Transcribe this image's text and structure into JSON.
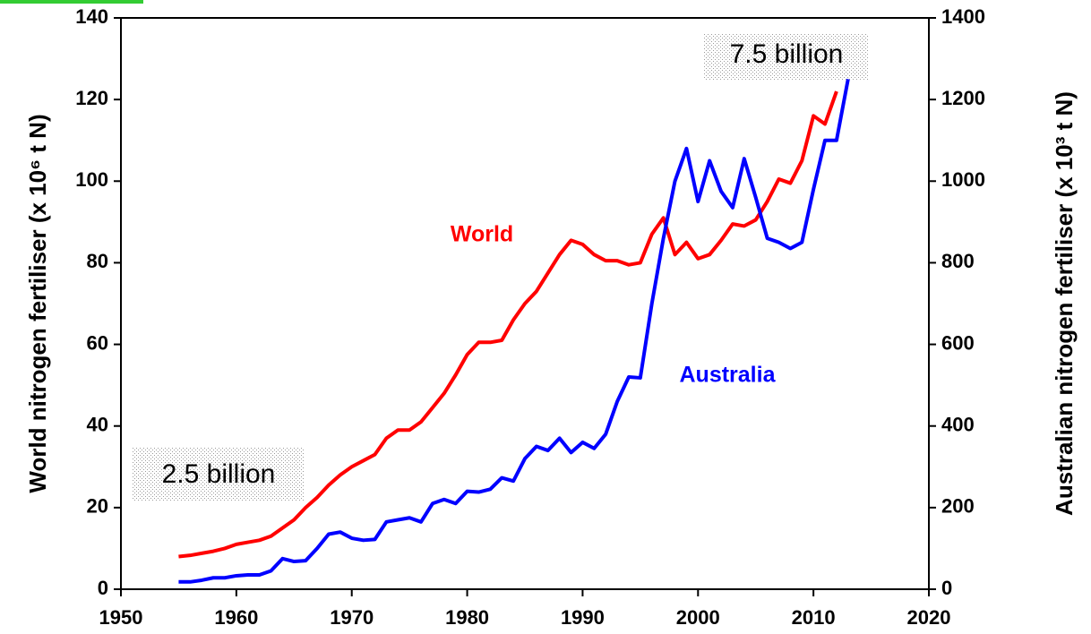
{
  "chart_data": {
    "type": "line",
    "y_label": "World nitrogen fertiliser (x 10⁶ t N)",
    "y2_label": "Australian nitrogen fertiliser (x 10³ t N)",
    "annotations": [
      "2.5 billion",
      "7.5 billion"
    ],
    "xlim": [
      1950,
      2020
    ],
    "xticks": [
      1950,
      1960,
      1970,
      1980,
      1990,
      2000,
      2010,
      2020
    ],
    "ylim": [
      0,
      140
    ],
    "yticks": [
      0,
      20,
      40,
      60,
      80,
      100,
      120,
      140
    ],
    "y2lim": [
      0,
      1400
    ],
    "y2ticks": [
      0,
      200,
      400,
      600,
      800,
      1000,
      1200,
      1400
    ],
    "series": [
      {
        "name": "World",
        "color": "#ff0000",
        "x": [
          1955,
          1956,
          1957,
          1958,
          1959,
          1960,
          1961,
          1962,
          1963,
          1964,
          1965,
          1966,
          1967,
          1968,
          1969,
          1970,
          1971,
          1972,
          1973,
          1974,
          1975,
          1976,
          1977,
          1978,
          1979,
          1980,
          1981,
          1982,
          1983,
          1984,
          1985,
          1986,
          1987,
          1988,
          1989,
          1990,
          1991,
          1992,
          1993,
          1994,
          1995,
          1996,
          1997,
          1998,
          1999,
          2000,
          2001,
          2002,
          2003,
          2004,
          2005,
          2006,
          2007,
          2008,
          2009,
          2010,
          2011,
          2012
        ],
        "values": [
          8,
          8.3,
          8.8,
          9.3,
          10,
          11,
          11.5,
          12,
          13,
          15,
          17,
          20,
          22.5,
          25.5,
          28,
          30,
          31.5,
          33,
          37,
          39,
          39,
          41,
          44.5,
          48,
          52.5,
          57.5,
          60.5,
          60.5,
          61,
          66,
          70,
          73,
          77.5,
          82,
          85.5,
          84.5,
          82,
          80.5,
          80.5,
          79.5,
          80,
          87,
          91,
          82,
          85,
          81,
          82,
          85.5,
          89.5,
          89,
          90.5,
          95,
          100.5,
          99.5,
          105,
          116,
          114,
          122
        ]
      },
      {
        "name": "Australia",
        "color": "#0000ff",
        "axis": "y2",
        "x": [
          1955,
          1956,
          1957,
          1958,
          1959,
          1960,
          1961,
          1962,
          1963,
          1964,
          1965,
          1966,
          1967,
          1968,
          1969,
          1970,
          1971,
          1972,
          1973,
          1974,
          1975,
          1976,
          1977,
          1978,
          1979,
          1980,
          1981,
          1982,
          1983,
          1984,
          1985,
          1986,
          1987,
          1988,
          1989,
          1990,
          1991,
          1992,
          1993,
          1994,
          1995,
          1996,
          1997,
          1998,
          1999,
          2000,
          2001,
          2002,
          2003,
          2004,
          2005,
          2006,
          2007,
          2008,
          2009,
          2010,
          2011,
          2012,
          2013
        ],
        "values": [
          18,
          18,
          22,
          28,
          28,
          33,
          35,
          35,
          45,
          75,
          68,
          70,
          100,
          135,
          140,
          125,
          120,
          122,
          165,
          170,
          175,
          165,
          210,
          220,
          210,
          240,
          238,
          245,
          273,
          265,
          320,
          350,
          340,
          370,
          335,
          360,
          345,
          380,
          460,
          520,
          518,
          700,
          860,
          1000,
          1080,
          950,
          1050,
          975,
          935,
          1055,
          960,
          860,
          850,
          835,
          850,
          980,
          1100,
          1100,
          1250
        ]
      }
    ]
  }
}
